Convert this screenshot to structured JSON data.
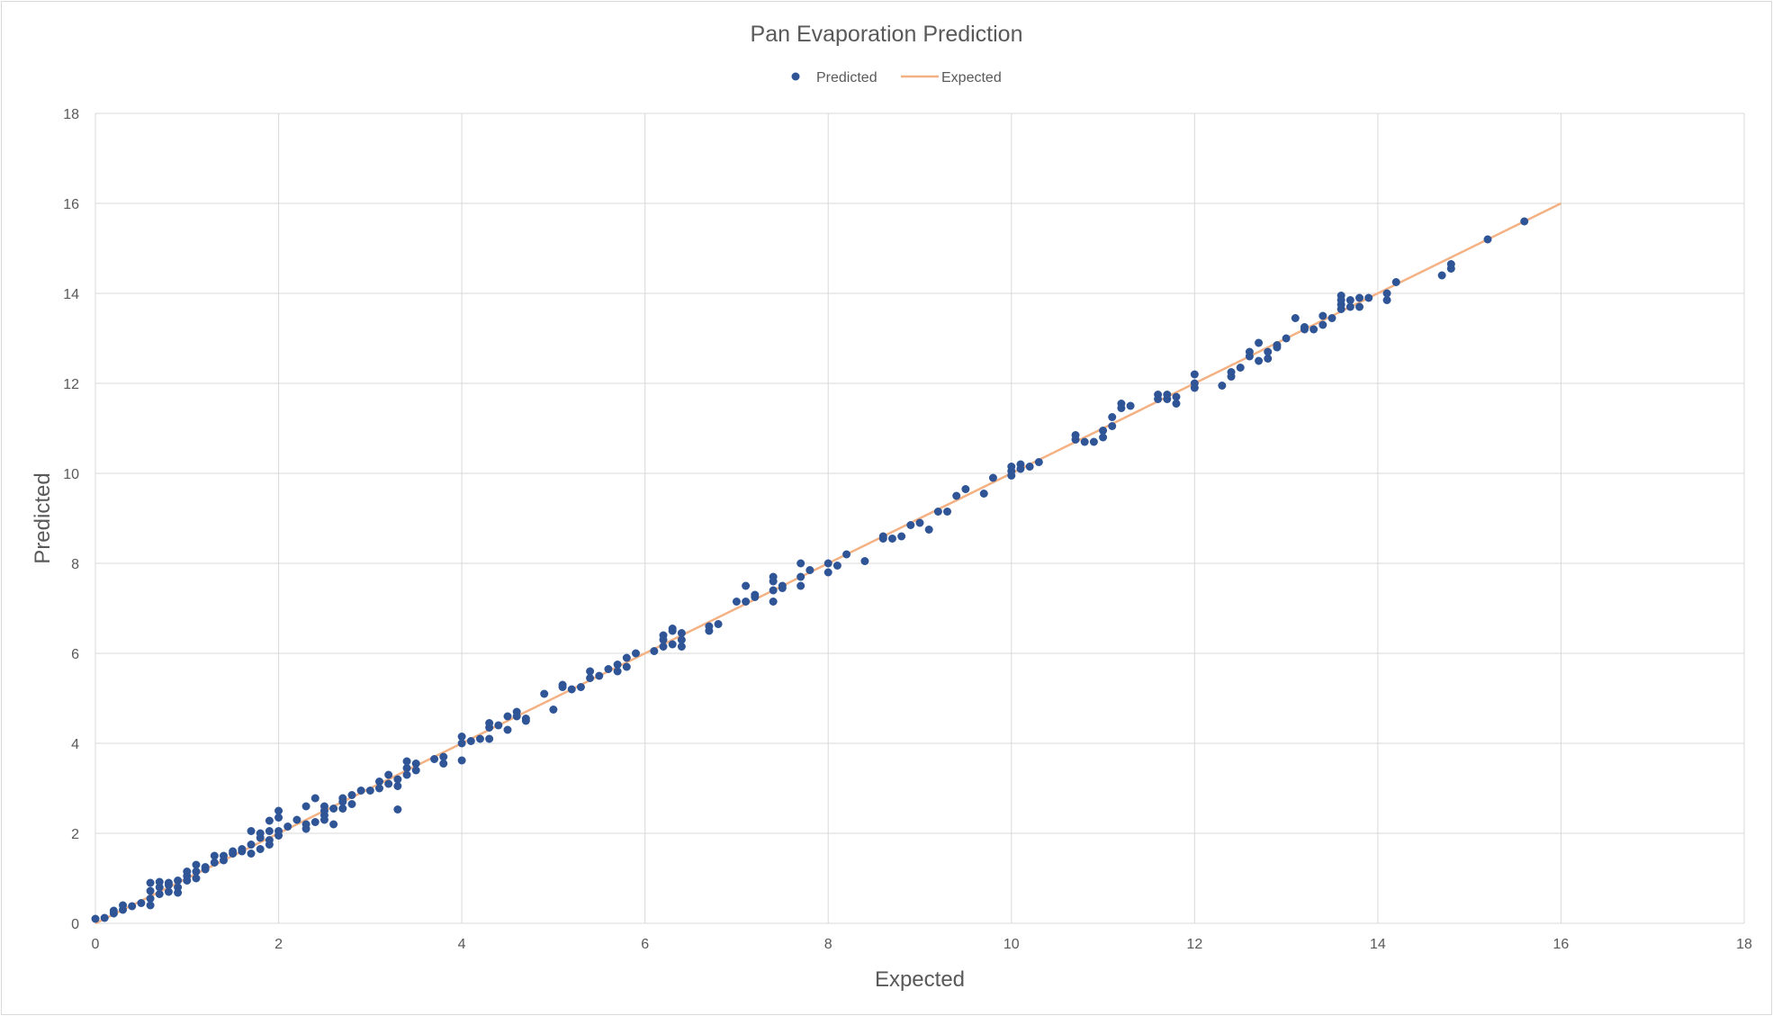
{
  "chart_data": {
    "type": "scatter",
    "title": "Pan Evaporation Prediction",
    "xlabel": "Expected",
    "ylabel": "Predicted",
    "xlim": [
      0,
      18
    ],
    "ylim": [
      0,
      18
    ],
    "xticks": [
      0,
      2,
      4,
      6,
      8,
      10,
      12,
      14,
      16,
      18
    ],
    "yticks": [
      0,
      2,
      4,
      6,
      8,
      10,
      12,
      14,
      16,
      18
    ],
    "grid": true,
    "legend_position": "top-center",
    "series": [
      {
        "name": "Predicted",
        "kind": "scatter",
        "color": "#2f5597",
        "points": [
          [
            0.0,
            0.1
          ],
          [
            0.1,
            0.12
          ],
          [
            0.2,
            0.22
          ],
          [
            0.2,
            0.28
          ],
          [
            0.3,
            0.3
          ],
          [
            0.3,
            0.4
          ],
          [
            0.4,
            0.38
          ],
          [
            0.5,
            0.45
          ],
          [
            0.6,
            0.4
          ],
          [
            0.6,
            0.55
          ],
          [
            0.6,
            0.72
          ],
          [
            0.6,
            0.9
          ],
          [
            0.7,
            0.65
          ],
          [
            0.7,
            0.8
          ],
          [
            0.7,
            0.92
          ],
          [
            0.8,
            0.7
          ],
          [
            0.8,
            0.85
          ],
          [
            0.8,
            0.9
          ],
          [
            0.9,
            0.68
          ],
          [
            0.9,
            0.8
          ],
          [
            0.9,
            0.95
          ],
          [
            1.0,
            0.95
          ],
          [
            1.0,
            1.05
          ],
          [
            1.0,
            1.15
          ],
          [
            1.1,
            1.0
          ],
          [
            1.1,
            1.15
          ],
          [
            1.1,
            1.3
          ],
          [
            1.2,
            1.2
          ],
          [
            1.2,
            1.25
          ],
          [
            1.3,
            1.35
          ],
          [
            1.3,
            1.5
          ],
          [
            1.4,
            1.4
          ],
          [
            1.4,
            1.5
          ],
          [
            1.5,
            1.55
          ],
          [
            1.5,
            1.6
          ],
          [
            1.6,
            1.6
          ],
          [
            1.6,
            1.65
          ],
          [
            1.7,
            1.55
          ],
          [
            1.7,
            1.75
          ],
          [
            1.7,
            2.05
          ],
          [
            1.8,
            1.65
          ],
          [
            1.8,
            1.9
          ],
          [
            1.8,
            2.0
          ],
          [
            1.9,
            1.75
          ],
          [
            1.9,
            1.85
          ],
          [
            1.9,
            2.05
          ],
          [
            1.9,
            2.28
          ],
          [
            2.0,
            1.95
          ],
          [
            2.0,
            2.05
          ],
          [
            2.0,
            2.35
          ],
          [
            2.0,
            2.5
          ],
          [
            2.1,
            2.15
          ],
          [
            2.2,
            2.3
          ],
          [
            2.3,
            2.1
          ],
          [
            2.3,
            2.2
          ],
          [
            2.3,
            2.6
          ],
          [
            2.4,
            2.25
          ],
          [
            2.4,
            2.78
          ],
          [
            2.5,
            2.3
          ],
          [
            2.5,
            2.4
          ],
          [
            2.5,
            2.5
          ],
          [
            2.5,
            2.6
          ],
          [
            2.6,
            2.2
          ],
          [
            2.6,
            2.55
          ],
          [
            2.7,
            2.55
          ],
          [
            2.7,
            2.7
          ],
          [
            2.7,
            2.78
          ],
          [
            2.8,
            2.65
          ],
          [
            2.8,
            2.85
          ],
          [
            2.9,
            2.95
          ],
          [
            3.0,
            2.95
          ],
          [
            3.1,
            3.0
          ],
          [
            3.1,
            3.15
          ],
          [
            3.2,
            3.1
          ],
          [
            3.2,
            3.3
          ],
          [
            3.3,
            2.53
          ],
          [
            3.3,
            3.05
          ],
          [
            3.3,
            3.2
          ],
          [
            3.4,
            3.3
          ],
          [
            3.4,
            3.45
          ],
          [
            3.4,
            3.6
          ],
          [
            3.5,
            3.4
          ],
          [
            3.5,
            3.55
          ],
          [
            3.7,
            3.65
          ],
          [
            3.8,
            3.55
          ],
          [
            3.8,
            3.7
          ],
          [
            4.0,
            3.62
          ],
          [
            4.0,
            4.0
          ],
          [
            4.0,
            4.15
          ],
          [
            4.1,
            4.05
          ],
          [
            4.2,
            4.1
          ],
          [
            4.3,
            4.1
          ],
          [
            4.3,
            4.35
          ],
          [
            4.3,
            4.45
          ],
          [
            4.4,
            4.4
          ],
          [
            4.5,
            4.3
          ],
          [
            4.5,
            4.6
          ],
          [
            4.6,
            4.6
          ],
          [
            4.6,
            4.7
          ],
          [
            4.7,
            4.5
          ],
          [
            4.7,
            4.55
          ],
          [
            4.9,
            5.1
          ],
          [
            5.0,
            4.75
          ],
          [
            5.1,
            5.25
          ],
          [
            5.1,
            5.3
          ],
          [
            5.2,
            5.2
          ],
          [
            5.3,
            5.25
          ],
          [
            5.4,
            5.45
          ],
          [
            5.4,
            5.6
          ],
          [
            5.5,
            5.5
          ],
          [
            5.6,
            5.65
          ],
          [
            5.7,
            5.6
          ],
          [
            5.7,
            5.75
          ],
          [
            5.8,
            5.7
          ],
          [
            5.8,
            5.9
          ],
          [
            5.9,
            6.0
          ],
          [
            6.1,
            6.05
          ],
          [
            6.2,
            6.15
          ],
          [
            6.2,
            6.3
          ],
          [
            6.2,
            6.4
          ],
          [
            6.3,
            6.2
          ],
          [
            6.3,
            6.5
          ],
          [
            6.3,
            6.55
          ],
          [
            6.4,
            6.15
          ],
          [
            6.4,
            6.3
          ],
          [
            6.4,
            6.45
          ],
          [
            6.7,
            6.5
          ],
          [
            6.7,
            6.6
          ],
          [
            6.8,
            6.65
          ],
          [
            7.0,
            7.15
          ],
          [
            7.1,
            7.15
          ],
          [
            7.1,
            7.5
          ],
          [
            7.2,
            7.25
          ],
          [
            7.2,
            7.3
          ],
          [
            7.4,
            7.15
          ],
          [
            7.4,
            7.4
          ],
          [
            7.4,
            7.6
          ],
          [
            7.4,
            7.7
          ],
          [
            7.5,
            7.45
          ],
          [
            7.5,
            7.5
          ],
          [
            7.7,
            7.5
          ],
          [
            7.7,
            7.7
          ],
          [
            7.7,
            8.0
          ],
          [
            7.8,
            7.85
          ],
          [
            8.0,
            7.8
          ],
          [
            8.0,
            8.0
          ],
          [
            8.1,
            7.95
          ],
          [
            8.2,
            8.2
          ],
          [
            8.4,
            8.05
          ],
          [
            8.6,
            8.55
          ],
          [
            8.6,
            8.6
          ],
          [
            8.7,
            8.55
          ],
          [
            8.8,
            8.6
          ],
          [
            8.9,
            8.85
          ],
          [
            9.0,
            8.9
          ],
          [
            9.1,
            8.75
          ],
          [
            9.2,
            9.15
          ],
          [
            9.3,
            9.15
          ],
          [
            9.4,
            9.5
          ],
          [
            9.5,
            9.65
          ],
          [
            9.7,
            9.55
          ],
          [
            9.8,
            9.9
          ],
          [
            10.0,
            9.95
          ],
          [
            10.0,
            10.05
          ],
          [
            10.0,
            10.15
          ],
          [
            10.1,
            10.1
          ],
          [
            10.1,
            10.2
          ],
          [
            10.2,
            10.15
          ],
          [
            10.3,
            10.25
          ],
          [
            10.7,
            10.75
          ],
          [
            10.7,
            10.85
          ],
          [
            10.8,
            10.7
          ],
          [
            10.9,
            10.7
          ],
          [
            11.0,
            10.8
          ],
          [
            11.0,
            10.95
          ],
          [
            11.1,
            11.05
          ],
          [
            11.1,
            11.25
          ],
          [
            11.2,
            11.45
          ],
          [
            11.2,
            11.55
          ],
          [
            11.3,
            11.5
          ],
          [
            11.6,
            11.65
          ],
          [
            11.6,
            11.75
          ],
          [
            11.7,
            11.65
          ],
          [
            11.7,
            11.75
          ],
          [
            11.8,
            11.55
          ],
          [
            11.8,
            11.7
          ],
          [
            12.0,
            11.9
          ],
          [
            12.0,
            12.0
          ],
          [
            12.0,
            12.2
          ],
          [
            12.3,
            11.95
          ],
          [
            12.4,
            12.15
          ],
          [
            12.4,
            12.25
          ],
          [
            12.5,
            12.35
          ],
          [
            12.6,
            12.6
          ],
          [
            12.6,
            12.7
          ],
          [
            12.7,
            12.5
          ],
          [
            12.7,
            12.9
          ],
          [
            12.8,
            12.55
          ],
          [
            12.8,
            12.7
          ],
          [
            12.9,
            12.8
          ],
          [
            12.9,
            12.85
          ],
          [
            13.0,
            13.0
          ],
          [
            13.1,
            13.45
          ],
          [
            13.2,
            13.2
          ],
          [
            13.2,
            13.25
          ],
          [
            13.3,
            13.2
          ],
          [
            13.4,
            13.3
          ],
          [
            13.4,
            13.5
          ],
          [
            13.5,
            13.45
          ],
          [
            13.6,
            13.65
          ],
          [
            13.6,
            13.75
          ],
          [
            13.6,
            13.85
          ],
          [
            13.6,
            13.95
          ],
          [
            13.7,
            13.7
          ],
          [
            13.7,
            13.85
          ],
          [
            13.8,
            13.7
          ],
          [
            13.8,
            13.9
          ],
          [
            13.9,
            13.9
          ],
          [
            14.1,
            13.85
          ],
          [
            14.1,
            14.0
          ],
          [
            14.2,
            14.25
          ],
          [
            14.7,
            14.4
          ],
          [
            14.8,
            14.55
          ],
          [
            14.8,
            14.65
          ],
          [
            15.2,
            15.2
          ],
          [
            15.6,
            15.6
          ]
        ]
      },
      {
        "name": "Expected",
        "kind": "line",
        "color": "#f4b183",
        "points": [
          [
            0,
            0
          ],
          [
            16,
            16
          ]
        ]
      }
    ]
  }
}
